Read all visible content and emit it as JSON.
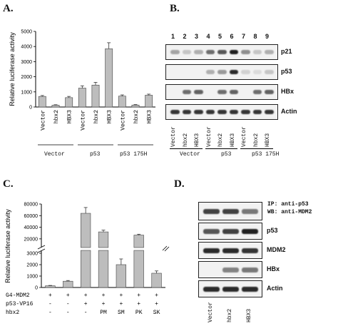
{
  "panels": {
    "a": {
      "letter": "A."
    },
    "b": {
      "letter": "B."
    },
    "c": {
      "letter": "C."
    },
    "d": {
      "letter": "D."
    }
  },
  "chart_data": [
    {
      "type": "bar",
      "panel": "A",
      "ylabel": "Relative luciferase activity",
      "ylim": [
        0,
        5000
      ],
      "yticks": [
        0,
        1000,
        2000,
        3000,
        4000,
        5000
      ],
      "categories": [
        "Vector",
        "hbx2",
        "HBX3",
        "Vector",
        "hbx2",
        "HBX3",
        "Vector",
        "hbx2",
        "HBX3"
      ],
      "values": [
        700,
        120,
        620,
        1250,
        1450,
        3850,
        720,
        130,
        780
      ],
      "errors": [
        60,
        30,
        80,
        150,
        180,
        400,
        80,
        30,
        70
      ],
      "groups": [
        "Vector",
        "p53",
        "p53 175H"
      ]
    },
    {
      "type": "bar",
      "panel": "C",
      "ylabel": "Relative luciferase activity",
      "broken_axis": true,
      "yticks_upper": [
        20000,
        40000,
        60000,
        80000
      ],
      "yticks_lower": [
        0,
        1000,
        2000,
        3000
      ],
      "values": [
        150,
        550,
        64000,
        32000,
        2000,
        26500,
        1250
      ],
      "errors": [
        30,
        60,
        10000,
        3000,
        500,
        1500,
        200
      ],
      "rows": [
        {
          "label": "G4-MDM2",
          "marks": [
            "+",
            "+",
            "+",
            "+",
            "+",
            "+",
            "+"
          ]
        },
        {
          "label": "p53-VP16",
          "marks": [
            "-",
            "-",
            "+",
            "+",
            "+",
            "+",
            "+"
          ]
        },
        {
          "label": "hbx2",
          "marks": [
            "-",
            "-",
            "-",
            "PM",
            "SM",
            "PK",
            "SK"
          ]
        }
      ]
    }
  ],
  "blot_b": {
    "lanes": [
      "1",
      "2",
      "3",
      "4",
      "5",
      "6",
      "7",
      "8",
      "9"
    ],
    "bands": [
      "p21",
      "p53",
      "HBx",
      "Actin"
    ],
    "categories": [
      "Vector",
      "hbx2",
      "HBX3",
      "Vector",
      "hbx2",
      "HBX3",
      "Vector",
      "hbx2",
      "HBX3"
    ],
    "groups": [
      "Vector",
      "p53",
      "p53 175H"
    ]
  },
  "blot_d": {
    "ip_label": "IP: anti-p53",
    "wb_label": "WB: anti-MDM2",
    "bands": [
      "p53",
      "MDM2",
      "HBx",
      "Actin"
    ],
    "lanes": [
      "Vector",
      "hbx2",
      "HBX3"
    ]
  }
}
